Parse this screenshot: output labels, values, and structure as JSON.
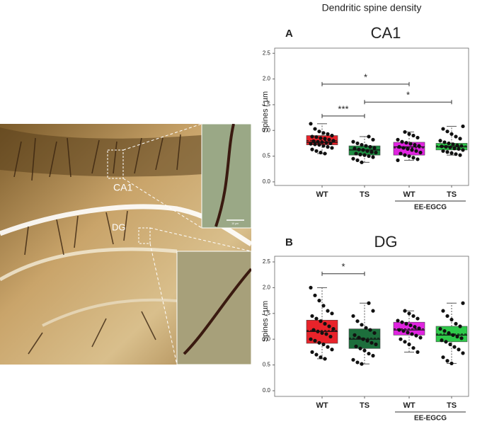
{
  "figure_title": "Dendritic spine density",
  "image": {
    "labels": [
      "CA1",
      "DG"
    ],
    "scale_bar": "10 µm"
  },
  "chart_data": [
    {
      "type": "box",
      "panel": "A",
      "title": "CA1",
      "ylabel": "Spines / µm",
      "categories": [
        "WT",
        "TS",
        "WT",
        "TS"
      ],
      "group_label": "EE-EGCG",
      "ylim": [
        -0.07,
        2.6
      ],
      "yticks": [
        {
          "value": 0,
          "label": "0.0"
        },
        0.5,
        {
          "value": 1,
          "label": "1.0"
        },
        1.5,
        {
          "value": 2,
          "label": "2.0"
        },
        2.5
      ],
      "boxes": [
        {
          "color": "#e8232a",
          "whisker_low": 0.55,
          "q1": 0.72,
          "median": 0.77,
          "mean": 0.8,
          "q3": 0.9,
          "whisker_high": 1.13,
          "points": [
            1.13,
            1.03,
            0.98,
            0.95,
            0.93,
            0.9,
            0.88,
            0.87,
            0.85,
            0.84,
            0.82,
            0.8,
            0.79,
            0.78,
            0.77,
            0.76,
            0.75,
            0.74,
            0.73,
            0.72,
            0.7,
            0.68,
            0.66,
            0.63,
            0.6,
            0.57,
            0.55
          ]
        },
        {
          "color": "#1d8a40",
          "whisker_low": 0.38,
          "q1": 0.52,
          "median": 0.62,
          "mean": 0.62,
          "q3": 0.7,
          "whisker_high": 0.88,
          "points": [
            0.88,
            0.82,
            0.78,
            0.75,
            0.72,
            0.7,
            0.68,
            0.66,
            0.65,
            0.63,
            0.62,
            0.6,
            0.58,
            0.57,
            0.55,
            0.53,
            0.52,
            0.5,
            0.48,
            0.45,
            0.42,
            0.38
          ]
        },
        {
          "color": "#e024e0",
          "whisker_low": 0.42,
          "q1": 0.52,
          "median": 0.68,
          "mean": 0.66,
          "q3": 0.77,
          "whisker_high": 0.97,
          "points": [
            0.97,
            0.93,
            0.9,
            0.86,
            0.82,
            0.78,
            0.76,
            0.74,
            0.72,
            0.7,
            0.68,
            0.66,
            0.64,
            0.62,
            0.6,
            0.57,
            0.55,
            0.52,
            0.5,
            0.47,
            0.44,
            0.42
          ]
        },
        {
          "color": "#2ec94a",
          "whisker_low": 0.52,
          "q1": 0.62,
          "median": 0.68,
          "mean": 0.7,
          "q3": 0.75,
          "whisker_high": 1.08,
          "points": [
            1.08,
            1.03,
            0.98,
            0.93,
            0.88,
            0.84,
            0.8,
            0.77,
            0.75,
            0.73,
            0.71,
            0.7,
            0.69,
            0.68,
            0.67,
            0.65,
            0.64,
            0.62,
            0.6,
            0.58,
            0.56,
            0.54,
            0.52
          ]
        }
      ],
      "significance": [
        {
          "text": "*",
          "between": [
            0,
            2
          ],
          "y": 1.9
        },
        {
          "text": "***",
          "between": [
            0,
            1
          ],
          "y": 1.28
        },
        {
          "text": "*",
          "between": [
            1,
            3
          ],
          "y": 1.55
        }
      ]
    },
    {
      "type": "box",
      "panel": "B",
      "title": "DG",
      "ylabel": "Spines / µm",
      "categories": [
        "WT",
        "TS",
        "WT",
        "TS"
      ],
      "group_label": "EE-EGCG",
      "ylim": [
        -0.11,
        2.61
      ],
      "yticks": [
        {
          "value": 0,
          "label": "0.0"
        },
        0.5,
        {
          "value": 1,
          "label": "1.0"
        },
        1.5,
        {
          "value": 2,
          "label": "2.0"
        },
        2.5
      ],
      "boxes": [
        {
          "color": "#e8232a",
          "whisker_low": 0.62,
          "q1": 0.92,
          "median": 1.15,
          "mean": 1.17,
          "q3": 1.37,
          "whisker_high": 2.0,
          "points": [
            2.0,
            1.85,
            1.75,
            1.65,
            1.55,
            1.5,
            1.45,
            1.4,
            1.35,
            1.3,
            1.25,
            1.2,
            1.18,
            1.15,
            1.12,
            1.1,
            1.05,
            1.0,
            0.97,
            0.93,
            0.9,
            0.85,
            0.8,
            0.75,
            0.7,
            0.65,
            0.62
          ]
        },
        {
          "color": "#1d6e3c",
          "whisker_low": 0.52,
          "q1": 0.82,
          "median": 1.0,
          "mean": 1.02,
          "q3": 1.2,
          "whisker_high": 1.7,
          "points": [
            1.7,
            1.55,
            1.45,
            1.35,
            1.28,
            1.22,
            1.18,
            1.12,
            1.08,
            1.03,
            1.0,
            0.97,
            0.93,
            0.9,
            0.86,
            0.82,
            0.78,
            0.72,
            0.68,
            0.6,
            0.55,
            0.52
          ]
        },
        {
          "color": "#e024e0",
          "whisker_low": 0.75,
          "q1": 1.08,
          "median": 1.18,
          "mean": 1.2,
          "q3": 1.33,
          "whisker_high": 1.55,
          "points": [
            1.55,
            1.5,
            1.45,
            1.4,
            1.36,
            1.33,
            1.3,
            1.27,
            1.24,
            1.21,
            1.18,
            1.16,
            1.13,
            1.1,
            1.07,
            1.03,
            1.0,
            0.95,
            0.9,
            0.83,
            0.75
          ]
        },
        {
          "color": "#2ec94a",
          "whisker_low": 0.53,
          "q1": 0.95,
          "median": 1.08,
          "mean": 1.1,
          "q3": 1.25,
          "whisker_high": 1.7,
          "points": [
            1.7,
            1.55,
            1.45,
            1.38,
            1.3,
            1.25,
            1.2,
            1.16,
            1.12,
            1.08,
            1.05,
            1.02,
            0.98,
            0.95,
            0.9,
            0.85,
            0.8,
            0.73,
            0.65,
            0.58,
            0.53
          ]
        }
      ],
      "significance": [
        {
          "text": "*",
          "between": [
            0,
            1
          ],
          "y": 2.27
        }
      ]
    }
  ]
}
